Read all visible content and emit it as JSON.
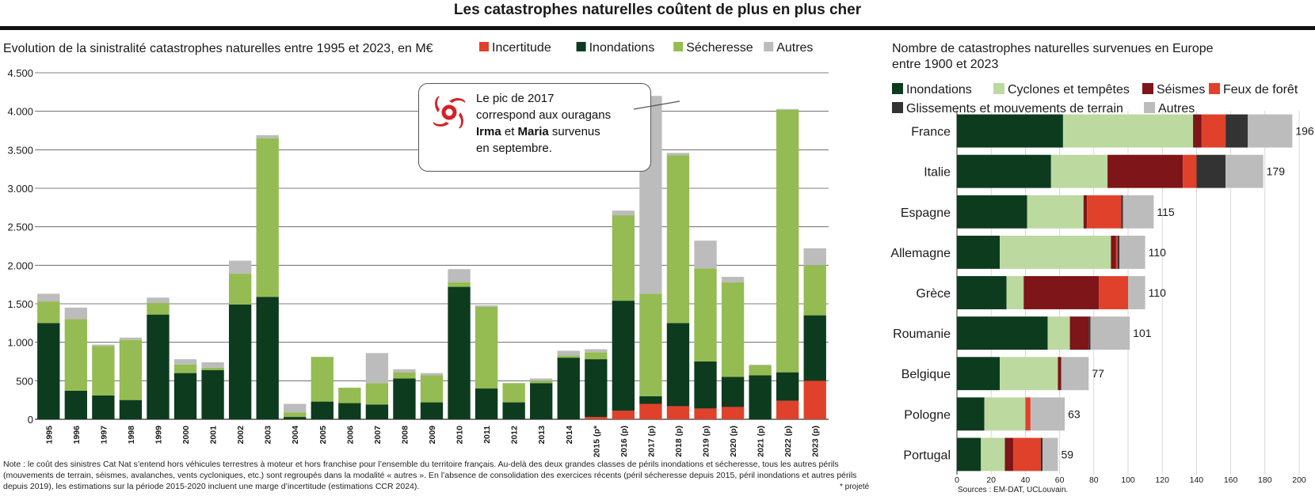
{
  "header": {
    "title": "Les catastrophes naturelles coûtent de plus en plus cher"
  },
  "callout": {
    "line1": "Le pic de 2017",
    "line2": "correspond aux ouragans",
    "name1": "Irma",
    "conj": "et",
    "name2": "Maria",
    "rest": "survenus",
    "line4": "en septembre."
  },
  "notes": {
    "text": "Note : le coût des sinistres Cat Nat s’entend hors véhicules terrestres à moteur et hors franchise pour l’ensemble du territoire français. Au-delà des deux grandes classes de périls inondations et sécheresse, tous les autres périls (mouvements de terrain, séismes, avalanches, vents cycloniques, etc.) sont regroupés dans la modalité « autres ». En l’absence de consolidation des exercices récents (péril sécheresse depuis 2015, péril inondations et autres périls depuis 2019), les estimations sur la période 2015-2020 incluent une marge d’incertitude (estimations CCR 2024).",
    "projected": "* projeté",
    "sources": "Sources : EM-DAT, UCLouvain."
  },
  "chart_data": [
    {
      "type": "bar",
      "stacked": true,
      "title": "Evolution de la sinistralité catastrophes naturelles entre 1995 et 2023, en M€",
      "ylim": [
        0,
        4500
      ],
      "yticks": [
        0,
        500,
        1000,
        1500,
        2000,
        2500,
        3000,
        3500,
        4000,
        4500
      ],
      "ytick_labels": [
        "0",
        "500",
        "1.000",
        "1.500",
        "2.000",
        "2.500",
        "3.000",
        "3.500",
        "4.000",
        "4.500"
      ],
      "grid": true,
      "legend_position": "top",
      "categories": [
        "1995",
        "1996",
        "1997",
        "1998",
        "1999",
        "2000",
        "2001",
        "2002",
        "2003",
        "2004",
        "2005",
        "2006",
        "2007",
        "2008",
        "2009",
        "2010",
        "2011",
        "2012",
        "2013",
        "2014",
        "2015 (p*",
        "2016 (p)",
        "2017 (p)",
        "2018 (p)",
        "2019 (p)",
        "2020 (p)",
        "2021 (p)",
        "2022 (p)",
        "2023 (p)"
      ],
      "series": [
        {
          "name": "Incertitude",
          "color": "#e0412a",
          "values": [
            0,
            0,
            0,
            0,
            0,
            0,
            0,
            0,
            0,
            0,
            0,
            0,
            0,
            0,
            0,
            0,
            0,
            0,
            0,
            0,
            30,
            110,
            200,
            170,
            140,
            160,
            0,
            240,
            500
          ]
        },
        {
          "name": "Inondations",
          "color": "#0d3b1e",
          "values": [
            1250,
            370,
            310,
            250,
            1360,
            600,
            640,
            1490,
            1590,
            30,
            230,
            210,
            190,
            530,
            220,
            1720,
            400,
            220,
            470,
            800,
            750,
            1430,
            100,
            1080,
            610,
            390,
            570,
            370,
            850
          ]
        },
        {
          "name": "Sécheresse",
          "color": "#94bc52",
          "values": [
            280,
            930,
            640,
            780,
            150,
            110,
            30,
            400,
            2060,
            60,
            580,
            200,
            280,
            80,
            350,
            60,
            1060,
            250,
            30,
            30,
            90,
            1110,
            1330,
            2180,
            1210,
            1230,
            130,
            3410,
            650
          ]
        },
        {
          "name": "Autres",
          "color": "#bcbcbc",
          "values": [
            100,
            150,
            20,
            30,
            70,
            70,
            70,
            170,
            40,
            110,
            0,
            0,
            390,
            40,
            30,
            170,
            20,
            0,
            30,
            60,
            40,
            60,
            2570,
            30,
            360,
            70,
            10,
            10,
            220
          ]
        }
      ]
    },
    {
      "type": "bar",
      "orientation": "horizontal",
      "stacked": true,
      "title": "Nombre de catastrophes naturelles survenues en Europe entre 1900 et 2023",
      "xlim": [
        0,
        200
      ],
      "xticks": [
        0,
        20,
        40,
        60,
        80,
        100,
        120,
        140,
        160,
        180,
        200
      ],
      "grid": true,
      "legend_position": "top",
      "categories": [
        "France",
        "Italie",
        "Espagne",
        "Allemagne",
        "Grèce",
        "Roumanie",
        "Belgique",
        "Pologne",
        "Portugal"
      ],
      "totals": [
        196,
        179,
        115,
        110,
        110,
        101,
        77,
        63,
        59
      ],
      "series": [
        {
          "name": "Inondations",
          "color": "#0d3b1e",
          "values": [
            62,
            55,
            41,
            25,
            29,
            53,
            25,
            16,
            14
          ]
        },
        {
          "name": "Cyclones et tempêtes",
          "color": "#bcd9a0",
          "values": [
            76,
            33,
            33,
            65,
            10,
            13,
            34,
            24,
            14
          ]
        },
        {
          "name": "Séismes",
          "color": "#7e1518",
          "values": [
            5,
            44,
            2,
            3,
            44,
            11,
            2,
            0,
            5
          ]
        },
        {
          "name": "Feux de forêt",
          "color": "#e0412a",
          "values": [
            14,
            8,
            20,
            1,
            17,
            0,
            0,
            3,
            16
          ]
        },
        {
          "name": "Glissements et mouvements de terrain",
          "color": "#333333",
          "values": [
            13,
            17,
            1,
            1,
            0,
            1,
            0,
            0,
            1
          ]
        },
        {
          "name": "Autres",
          "color": "#bcbcbc",
          "values": [
            26,
            22,
            18,
            15,
            10,
            23,
            16,
            20,
            9
          ]
        }
      ]
    }
  ]
}
